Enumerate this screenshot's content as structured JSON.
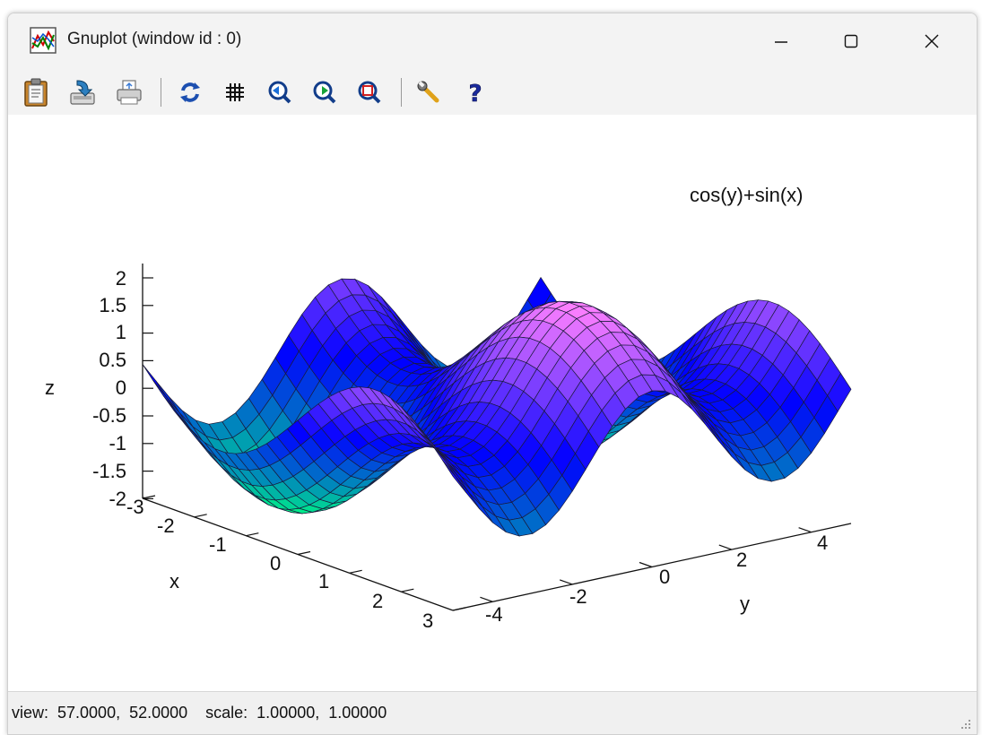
{
  "window": {
    "title": "Gnuplot (window id : 0)",
    "controls": {
      "minimize": "minimize",
      "maximize": "maximize",
      "close": "close"
    }
  },
  "toolbar": {
    "buttons": [
      {
        "name": "clipboard-button",
        "icon": "clipboard-icon"
      },
      {
        "name": "save-button",
        "icon": "save-icon"
      },
      {
        "name": "print-button",
        "icon": "printer-icon"
      },
      {
        "name": "replot-button",
        "icon": "refresh-icon"
      },
      {
        "name": "grid-button",
        "icon": "grid-icon"
      },
      {
        "name": "zoom-previous-button",
        "icon": "zoom-back-icon"
      },
      {
        "name": "zoom-next-button",
        "icon": "zoom-forward-icon"
      },
      {
        "name": "autoscale-button",
        "icon": "zoom-fit-icon"
      },
      {
        "name": "options-button",
        "icon": "wrench-icon"
      },
      {
        "name": "help-button",
        "icon": "help-icon"
      }
    ]
  },
  "plot": {
    "legend_label": "cos(y)+sin(x)",
    "z_axis_label": "z",
    "x_axis_label": "x",
    "y_axis_label": "y",
    "z_ticks": [
      "2",
      "1.5",
      "1",
      "0.5",
      "0",
      "-0.5",
      "-1",
      "-1.5",
      "-2"
    ],
    "x_ticks": [
      "-3",
      "-2",
      "-1",
      "0",
      "1",
      "2",
      "3"
    ],
    "y_ticks": [
      "-4",
      "-2",
      "0",
      "2",
      "4"
    ]
  },
  "chart_data": {
    "type": "surface",
    "function": "cos(y)+sin(x)",
    "xrange": [
      -3.14,
      3.14
    ],
    "yrange": [
      -5,
      5
    ],
    "zrange": [
      -2,
      2
    ],
    "colors": {
      "low": "#00ff80",
      "mid": "#0000ff",
      "high": "#ff80ff"
    }
  },
  "status": {
    "text": "view:  57.0000,  52.0000    scale:  1.00000,  1.00000"
  }
}
